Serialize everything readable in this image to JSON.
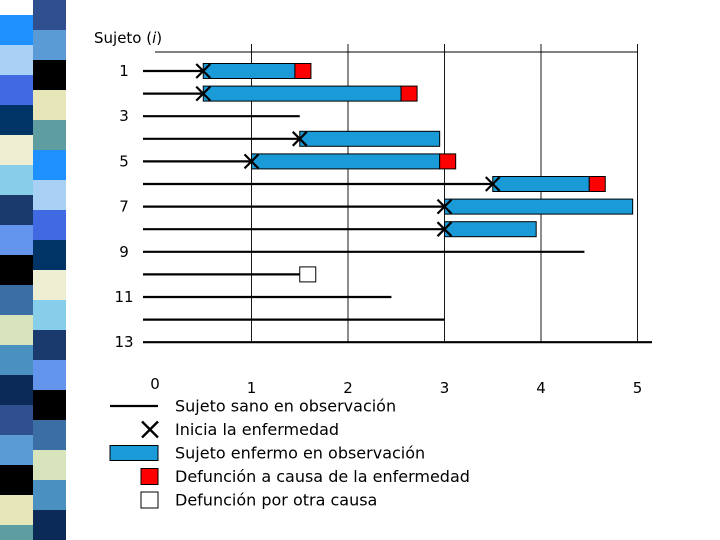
{
  "chart_data": {
    "type": "timeline",
    "y_title": "Sujeto (i)",
    "y_title_base": "Sujeto (",
    "y_title_var": "i",
    "y_title_close": ")",
    "x_ticks": [
      "0",
      "1",
      "2",
      "3",
      "4",
      "5"
    ],
    "y_ticks": [
      "1",
      "3",
      "5",
      "7",
      "9",
      "11",
      "13"
    ],
    "xlim": [
      0,
      5
    ],
    "subjects": [
      {
        "id": 1,
        "healthy": [
          0.0,
          0.5
        ],
        "onset": 0.5,
        "sick": [
          0.5,
          1.45
        ],
        "end": "disease_death"
      },
      {
        "id": 2,
        "healthy": [
          0.0,
          0.5
        ],
        "onset": 0.5,
        "sick": [
          0.5,
          2.55
        ],
        "end": "disease_death"
      },
      {
        "id": 3,
        "healthy": [
          0.0,
          1.5
        ],
        "onset": null,
        "sick": null,
        "end": null
      },
      {
        "id": 4,
        "healthy": [
          0.0,
          1.5
        ],
        "onset": 1.5,
        "sick": [
          1.5,
          2.95
        ],
        "end": null
      },
      {
        "id": 5,
        "healthy": [
          0.0,
          1.0
        ],
        "onset": 1.0,
        "sick": [
          1.0,
          2.95
        ],
        "end": "disease_death"
      },
      {
        "id": 6,
        "healthy": [
          0.0,
          3.5
        ],
        "onset": 3.5,
        "sick": [
          3.5,
          4.5
        ],
        "end": "disease_death"
      },
      {
        "id": 7,
        "healthy": [
          0.0,
          3.0
        ],
        "onset": 3.0,
        "sick": [
          3.0,
          4.95
        ],
        "end": null
      },
      {
        "id": 8,
        "healthy": [
          0.0,
          3.0
        ],
        "onset": 3.0,
        "sick": [
          3.0,
          3.95
        ],
        "end": null
      },
      {
        "id": 9,
        "healthy": [
          0.0,
          4.45
        ],
        "onset": null,
        "sick": null,
        "end": null
      },
      {
        "id": 10,
        "healthy": [
          0.0,
          1.5
        ],
        "onset": null,
        "sick": null,
        "end": "other_death"
      },
      {
        "id": 11,
        "healthy": [
          0.0,
          2.45
        ],
        "onset": null,
        "sick": null,
        "end": null
      },
      {
        "id": 12,
        "healthy": [
          0.0,
          3.0
        ],
        "onset": null,
        "sick": null,
        "end": null
      },
      {
        "id": 13,
        "healthy": [
          0.0,
          5.15
        ],
        "onset": null,
        "sick": null,
        "end": null
      }
    ],
    "legend": [
      {
        "key": "healthy",
        "label": "Sujeto sano en observación"
      },
      {
        "key": "onset",
        "label": "Inicia la enfermedad"
      },
      {
        "key": "sick",
        "label": "Sujeto enfermo en observación"
      },
      {
        "key": "disease_death",
        "label": "Defunción a causa de la enfermedad"
      },
      {
        "key": "other_death",
        "label": "Defunción por otra causa"
      }
    ],
    "colors": {
      "sick": "#1a9ad6",
      "disease_death": "#ff0000",
      "other_death": "#ffffff",
      "line": "#000000",
      "grid": "#000000"
    }
  },
  "decoration": {
    "stripe_colors": [
      "#2f4f8f",
      "#5b9bd5",
      "#000000",
      "#e6e6b8",
      "#5f9ea0",
      "#1e90ff",
      "#a9d0f5",
      "#4169e1",
      "#003366",
      "#eeeed2",
      "#87ceeb",
      "#1a3a6e",
      "#6495ed",
      "#000000",
      "#3a6ea5",
      "#d8e4bc",
      "#4a90c0",
      "#0b2a55"
    ]
  }
}
